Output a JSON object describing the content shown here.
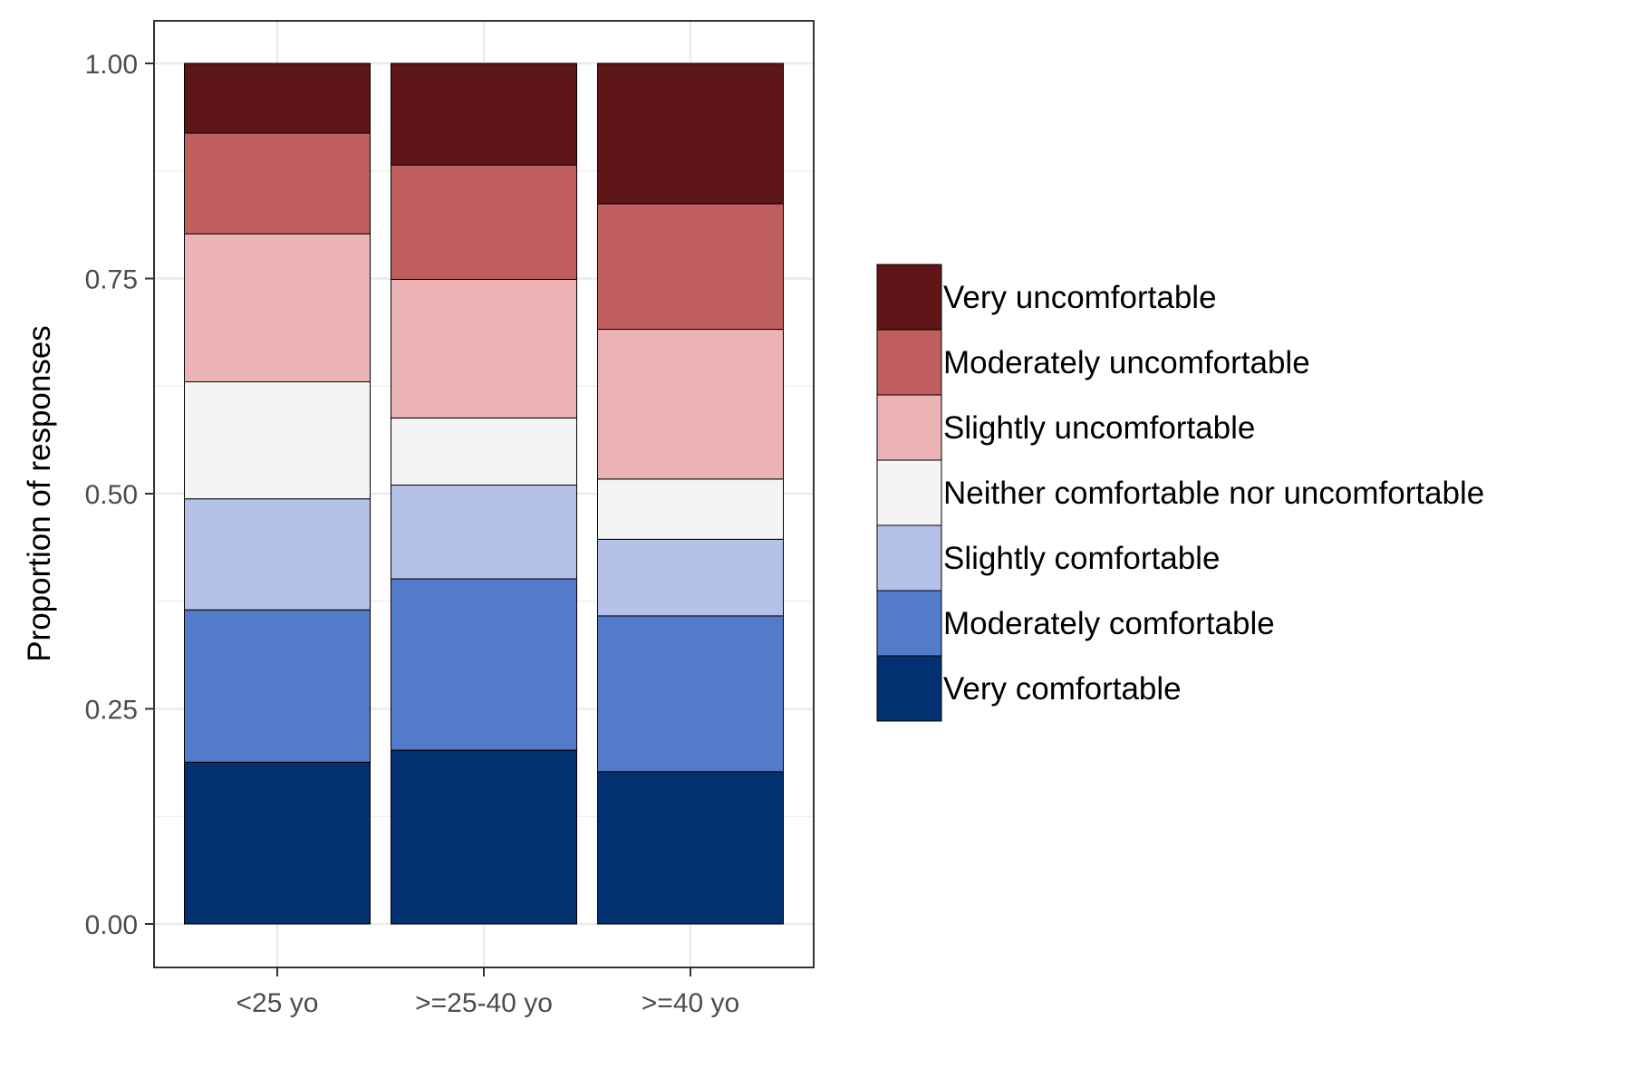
{
  "chart_data": {
    "type": "bar",
    "stacked": true,
    "normalized": true,
    "title": "",
    "xlabel": "",
    "ylabel": "Proportion of responses",
    "ylim": [
      0,
      1
    ],
    "y_ticks": [
      "0.00",
      "0.25",
      "0.50",
      "0.75",
      "1.00"
    ],
    "y_tick_values": [
      0,
      0.25,
      0.5,
      0.75,
      1.0
    ],
    "grid": true,
    "legend_position": "right",
    "categories": [
      "<25 yo",
      ">=25-40 yo",
      ">=40 yo"
    ],
    "series": [
      {
        "name": "Very comfortable",
        "color": "#023070",
        "values": [
          0.188,
          0.202,
          0.177
        ]
      },
      {
        "name": "Moderately comfortable",
        "color": "#527CC9",
        "values": [
          0.177,
          0.199,
          0.181
        ]
      },
      {
        "name": "Slightly comfortable",
        "color": "#B4C2EA",
        "values": [
          0.129,
          0.109,
          0.089
        ]
      },
      {
        "name": "Neither comfortable nor uncomfortable",
        "color": "#F4F4F4",
        "values": [
          0.136,
          0.078,
          0.07
        ]
      },
      {
        "name": "Slightly uncomfortable",
        "color": "#EBB3B5",
        "values": [
          0.172,
          0.161,
          0.174
        ]
      },
      {
        "name": "Moderately uncomfortable",
        "color": "#C05E5D",
        "values": [
          0.117,
          0.133,
          0.146
        ]
      },
      {
        "name": "Very uncomfortable",
        "color": "#5E1618",
        "values": [
          0.081,
          0.118,
          0.163
        ]
      }
    ]
  }
}
